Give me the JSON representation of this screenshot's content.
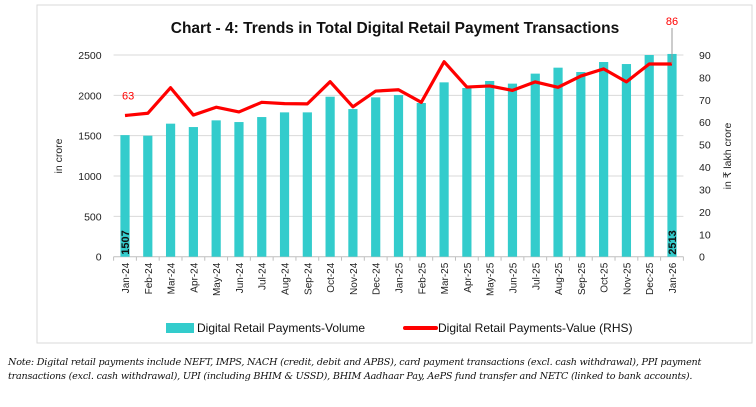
{
  "chart_data": {
    "type": "bar+line",
    "title": "Chart - 4: Trends in Total Digital Retail Payment Transactions",
    "categories": [
      "Jan-24",
      "Feb-24",
      "Mar-24",
      "Apr-24",
      "May-24",
      "Jun-24",
      "Jul-24",
      "Aug-24",
      "Sep-24",
      "Oct-24",
      "Nov-24",
      "Dec-24",
      "Jan-25",
      "Feb-25",
      "Mar-25",
      "Apr-25",
      "May-25",
      "Jun-25",
      "Jul-25",
      "Aug-25",
      "Sep-25",
      "Oct-25",
      "Nov-25",
      "Dec-25",
      "Jan-26"
    ],
    "series": [
      {
        "name": "Digital Retail Payments-Volume",
        "type": "bar",
        "axis": "left",
        "color": "#33CCCC",
        "values": [
          1507,
          1500,
          1649,
          1607,
          1690,
          1669,
          1731,
          1789,
          1789,
          1983,
          1830,
          1975,
          2004,
          1905,
          2161,
          2091,
          2178,
          2145,
          2269,
          2343,
          2289,
          2413,
          2388,
          2500,
          2513
        ]
      },
      {
        "name": "Digital Retail Payments-Value (RHS)",
        "type": "line",
        "axis": "right",
        "color": "#FF0000",
        "values": [
          63,
          64,
          75.4,
          63.2,
          66.7,
          64.6,
          68.9,
          68.3,
          68.2,
          78.1,
          66.9,
          73.9,
          74.5,
          68.9,
          87,
          75.7,
          76.2,
          74.2,
          78,
          75.6,
          80.6,
          83.8,
          78,
          86,
          86
        ]
      }
    ],
    "bar_labels": {
      "first": "1507",
      "last": "2513"
    },
    "line_labels": {
      "first": "63",
      "last": "86"
    },
    "ylabel": "in crore",
    "y2label": "in ₹ lakh crore",
    "ylim": [
      0,
      2500
    ],
    "yticks": [
      "0",
      "500",
      "1000",
      "1500",
      "2000",
      "2500"
    ],
    "y2lim": [
      0,
      90
    ],
    "y2ticks": [
      "0",
      "10",
      "20",
      "30",
      "40",
      "50",
      "60",
      "70",
      "80",
      "90"
    ],
    "grid": true,
    "legend": "bottom"
  },
  "note": {
    "label": "Note:",
    "text": " Digital retail payments include NEFT, IMPS, NACH (credit, debit and APBS), card payment transactions (excl. cash withdrawal), PPI payment transactions (excl. cash withdrawal), UPI (including BHIM & USSD), BHIM Aadhaar Pay, AePS fund transfer and NETC (linked to bank accounts)."
  }
}
